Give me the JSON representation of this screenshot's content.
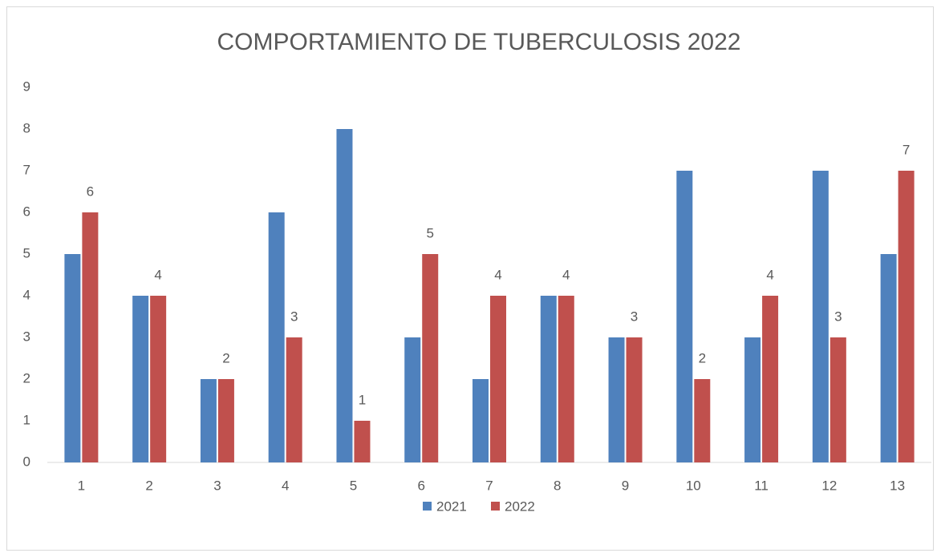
{
  "chart_data": {
    "type": "bar",
    "title": "COMPORTAMIENTO DE TUBERCULOSIS 2022",
    "categories": [
      "1",
      "2",
      "3",
      "4",
      "5",
      "6",
      "7",
      "8",
      "9",
      "10",
      "11",
      "12",
      "13"
    ],
    "series": [
      {
        "name": "2021",
        "color": "#4f81bd",
        "values": [
          5,
          4,
          2,
          6,
          8,
          3,
          2,
          4,
          3,
          7,
          3,
          7,
          5
        ]
      },
      {
        "name": "2022",
        "color": "#c0504d",
        "values": [
          6,
          4,
          2,
          3,
          1,
          5,
          4,
          4,
          3,
          2,
          4,
          3,
          7
        ],
        "data_labels": true
      }
    ],
    "ylim": [
      0,
      9
    ],
    "yticks": [
      0,
      1,
      2,
      3,
      4,
      5,
      6,
      7,
      8,
      9
    ],
    "grid": false,
    "legend": "bottom"
  }
}
